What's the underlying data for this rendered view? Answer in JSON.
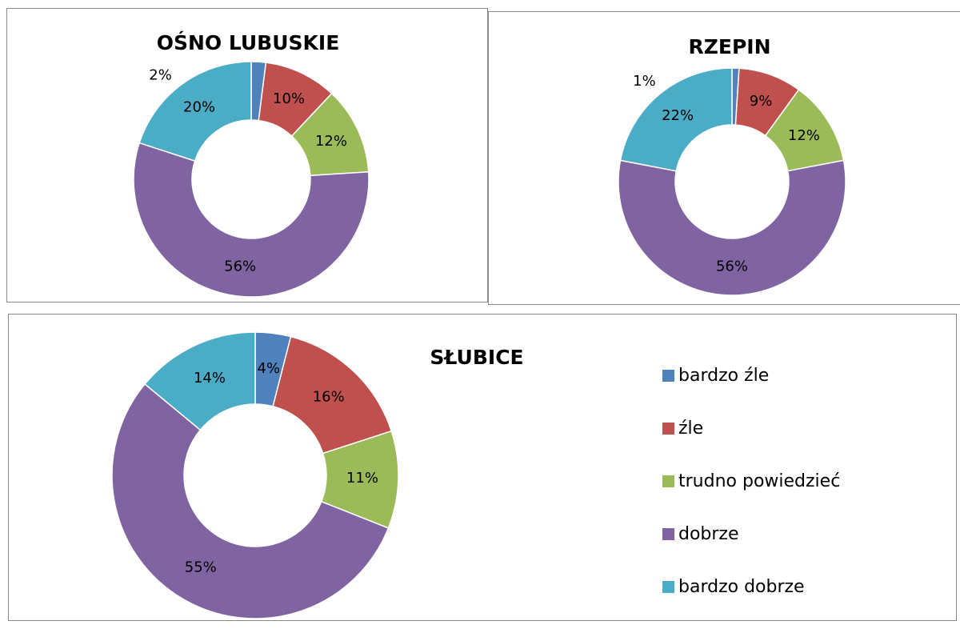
{
  "chart_data": [
    {
      "type": "donut",
      "title": "OŚNO LUBUSKIE",
      "values": [
        2,
        10,
        12,
        56,
        20
      ],
      "value_labels": [
        "2%",
        "10%",
        "12%",
        "56%",
        "20%"
      ],
      "colors": [
        "#4f81bd",
        "#c0504d",
        "#9bbb59",
        "#8064a2",
        "#4bacc6"
      ]
    },
    {
      "type": "donut",
      "title": "RZEPIN",
      "values": [
        1,
        9,
        12,
        56,
        22
      ],
      "value_labels": [
        "1%",
        "9%",
        "12%",
        "56%",
        "22%"
      ],
      "colors": [
        "#4f81bd",
        "#c0504d",
        "#9bbb59",
        "#8064a2",
        "#4bacc6"
      ]
    },
    {
      "type": "donut",
      "title": "SŁUBICE",
      "categories": [
        "bardzo źle",
        "źle",
        "trudno powiedzieć",
        "dobrze",
        "bardzo dobrze"
      ],
      "values": [
        4,
        16,
        11,
        55,
        14
      ],
      "value_labels": [
        "4%",
        "16%",
        "11%",
        "55%",
        "14%"
      ],
      "colors": [
        "#4f81bd",
        "#c0504d",
        "#9bbb59",
        "#8064a2",
        "#4bacc6"
      ],
      "legend": "right"
    }
  ]
}
